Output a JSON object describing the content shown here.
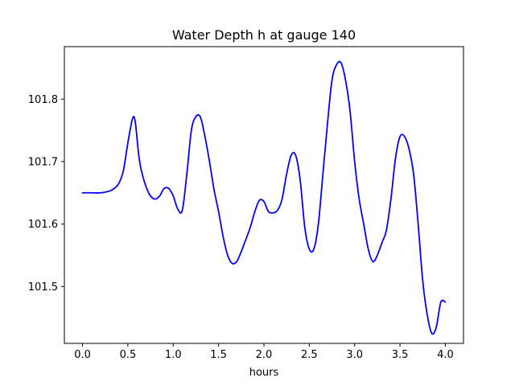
{
  "chart_data": {
    "type": "line",
    "title": "Water Depth h at gauge 140",
    "xlabel": "hours",
    "ylabel": "",
    "xlim": [
      -0.2,
      4.2
    ],
    "ylim": [
      101.409,
      101.884
    ],
    "xticks": [
      0.0,
      0.5,
      1.0,
      1.5,
      2.0,
      2.5,
      3.0,
      3.5,
      4.0
    ],
    "xtick_labels": [
      "0.0",
      "0.5",
      "1.0",
      "1.5",
      "2.0",
      "2.5",
      "3.0",
      "3.5",
      "4.0"
    ],
    "yticks": [
      101.5,
      101.6,
      101.7,
      101.8
    ],
    "ytick_labels": [
      "101.5",
      "101.6",
      "101.7",
      "101.8"
    ],
    "grid": false,
    "series": [
      {
        "color": "#0000ff",
        "x": [
          0.0,
          0.1,
          0.2,
          0.3,
          0.35,
          0.4,
          0.45,
          0.5,
          0.55,
          0.58,
          0.62,
          0.65,
          0.7,
          0.75,
          0.8,
          0.85,
          0.9,
          0.95,
          1.0,
          1.05,
          1.1,
          1.15,
          1.2,
          1.25,
          1.3,
          1.35,
          1.4,
          1.45,
          1.5,
          1.55,
          1.6,
          1.65,
          1.7,
          1.75,
          1.8,
          1.85,
          1.9,
          1.95,
          2.0,
          2.05,
          2.1,
          2.15,
          2.2,
          2.25,
          2.3,
          2.35,
          2.4,
          2.45,
          2.5,
          2.55,
          2.6,
          2.65,
          2.7,
          2.75,
          2.8,
          2.85,
          2.9,
          2.95,
          3.0,
          3.05,
          3.1,
          3.15,
          3.2,
          3.25,
          3.3,
          3.35,
          3.4,
          3.45,
          3.5,
          3.55,
          3.6,
          3.65,
          3.7,
          3.75,
          3.8,
          3.85,
          3.9,
          3.95,
          4.0
        ],
        "y": [
          101.65,
          101.65,
          101.65,
          101.653,
          101.657,
          101.665,
          101.685,
          101.73,
          101.768,
          101.765,
          101.71,
          101.685,
          101.66,
          101.645,
          101.64,
          101.645,
          101.657,
          101.657,
          101.645,
          101.624,
          101.622,
          101.68,
          101.75,
          101.772,
          101.771,
          101.74,
          101.7,
          101.655,
          101.62,
          101.58,
          101.55,
          101.537,
          101.54,
          101.556,
          101.575,
          101.595,
          101.62,
          101.638,
          101.636,
          101.62,
          101.618,
          101.622,
          101.64,
          101.68,
          101.71,
          101.71,
          101.67,
          101.595,
          101.56,
          101.56,
          101.6,
          101.68,
          101.76,
          101.83,
          101.855,
          101.858,
          101.83,
          101.78,
          101.7,
          101.64,
          101.6,
          101.56,
          101.54,
          101.55,
          101.57,
          101.59,
          101.64,
          101.705,
          101.74,
          101.74,
          101.72,
          101.68,
          101.6,
          101.51,
          101.455,
          101.425,
          101.435,
          101.475,
          101.475
        ]
      }
    ]
  }
}
